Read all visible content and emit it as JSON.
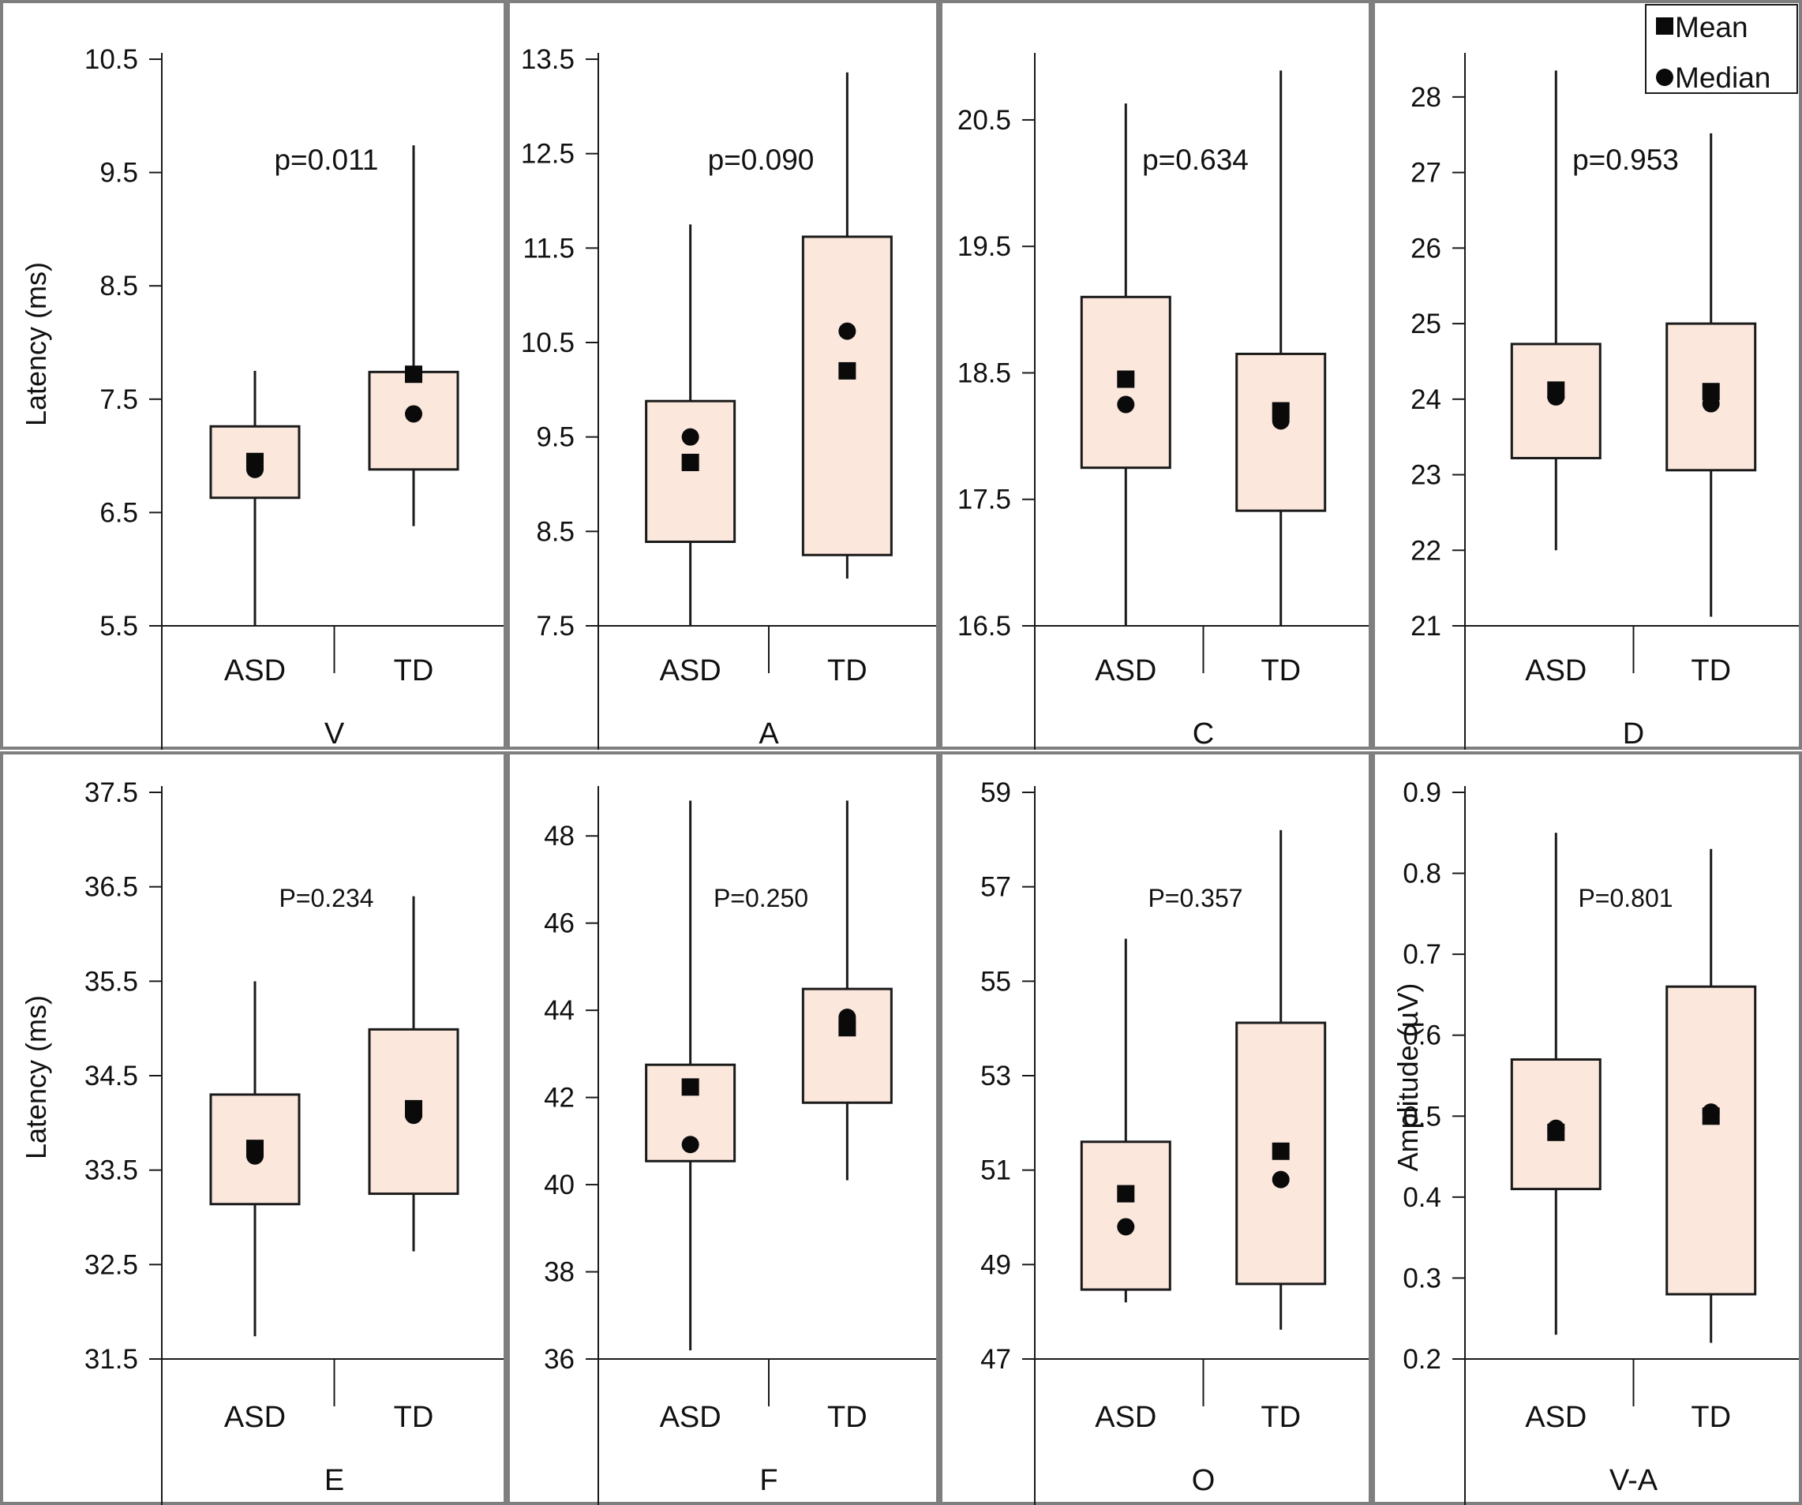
{
  "colors": {
    "box_fill": "#fbe7dc",
    "stroke": "#1a1a1a",
    "panel_border": "#7f7f7f",
    "marker": "#0a0a0a"
  },
  "legend": {
    "items": [
      {
        "label": "Mean",
        "marker": "square"
      },
      {
        "label": "Median",
        "marker": "circle"
      }
    ],
    "placement": "top-right"
  },
  "chart_data": [
    {
      "type": "box",
      "panel": "V",
      "ylabel": "Latency (ms)",
      "ylim": [
        5.5,
        10.5
      ],
      "yticks": [
        "5.5",
        "6.5",
        "7.5",
        "8.5",
        "9.5",
        "10.5"
      ],
      "pvalue": "p=0.011",
      "categories": [
        "ASD",
        "TD"
      ],
      "series": [
        {
          "min": 5.5,
          "q1": 6.63,
          "q3": 7.26,
          "max": 7.75,
          "mean": 6.95,
          "median": 6.88
        },
        {
          "min": 6.38,
          "q1": 6.88,
          "q3": 7.74,
          "max": 9.74,
          "mean": 7.72,
          "median": 7.37
        }
      ]
    },
    {
      "type": "box",
      "panel": "A",
      "ylabel": "",
      "ylim": [
        7.5,
        13.5
      ],
      "yticks": [
        "7.5",
        "8.5",
        "9.5",
        "10.5",
        "11.5",
        "12.5",
        "13.5"
      ],
      "pvalue": "p=0.090",
      "categories": [
        "ASD",
        "TD"
      ],
      "series": [
        {
          "min": 7.5,
          "q1": 8.39,
          "q3": 9.88,
          "max": 11.75,
          "mean": 9.23,
          "median": 9.5
        },
        {
          "min": 8.0,
          "q1": 8.25,
          "q3": 11.62,
          "max": 13.36,
          "mean": 10.2,
          "median": 10.62
        }
      ]
    },
    {
      "type": "box",
      "panel": "C",
      "ylabel": "",
      "ylim": [
        16.5,
        20.98
      ],
      "yticks": [
        "16.5",
        "17.5",
        "18.5",
        "19.5",
        "20.5"
      ],
      "pvalue": "p=0.634",
      "categories": [
        "ASD",
        "TD"
      ],
      "series": [
        {
          "min": 16.5,
          "q1": 17.75,
          "q3": 19.1,
          "max": 20.63,
          "mean": 18.45,
          "median": 18.25
        },
        {
          "min": 16.5,
          "q1": 17.41,
          "q3": 18.65,
          "max": 20.89,
          "mean": 18.2,
          "median": 18.12
        }
      ]
    },
    {
      "type": "box",
      "panel": "D",
      "ylabel": "",
      "ylim": [
        21,
        28.5
      ],
      "yticks": [
        "21",
        "22",
        "23",
        "24",
        "25",
        "26",
        "27",
        "28"
      ],
      "pvalue": "p=0.953",
      "categories": [
        "ASD",
        "TD"
      ],
      "series": [
        {
          "min": 22.0,
          "q1": 23.22,
          "q3": 24.73,
          "max": 28.35,
          "mean": 24.12,
          "median": 24.03
        },
        {
          "min": 21.12,
          "q1": 23.06,
          "q3": 25.0,
          "max": 27.52,
          "mean": 24.1,
          "median": 23.94
        }
      ]
    },
    {
      "type": "box",
      "panel": "E",
      "ylabel": "Latency (ms)",
      "ylim": [
        31.5,
        37.5
      ],
      "yticks": [
        "31.5",
        "32.5",
        "33.5",
        "34.5",
        "35.5",
        "36.5",
        "37.5"
      ],
      "pvalue": "P=0.234",
      "categories": [
        "ASD",
        "TD"
      ],
      "series": [
        {
          "min": 31.74,
          "q1": 33.14,
          "q3": 34.3,
          "max": 35.5,
          "mean": 33.73,
          "median": 33.65
        },
        {
          "min": 32.64,
          "q1": 33.25,
          "q3": 34.99,
          "max": 36.4,
          "mean": 34.15,
          "median": 34.08
        }
      ]
    },
    {
      "type": "box",
      "panel": "F",
      "ylabel": "",
      "ylim": [
        36,
        49
      ],
      "yticks": [
        "36",
        "38",
        "40",
        "42",
        "44",
        "46",
        "48"
      ],
      "pvalue": "P=0.250",
      "categories": [
        "ASD",
        "TD"
      ],
      "series": [
        {
          "min": 36.2,
          "q1": 40.54,
          "q3": 42.75,
          "max": 48.81,
          "mean": 42.24,
          "median": 40.92
        },
        {
          "min": 40.1,
          "q1": 41.88,
          "q3": 44.49,
          "max": 48.81,
          "mean": 43.6,
          "median": 43.84
        }
      ]
    },
    {
      "type": "box",
      "panel": "O",
      "ylabel": "",
      "ylim": [
        47,
        59
      ],
      "yticks": [
        "47",
        "49",
        "51",
        "53",
        "55",
        "57",
        "59"
      ],
      "pvalue": "P=0.357",
      "categories": [
        "ASD",
        "TD"
      ],
      "series": [
        {
          "min": 48.2,
          "q1": 48.47,
          "q3": 51.6,
          "max": 55.9,
          "mean": 50.5,
          "median": 49.8
        },
        {
          "min": 47.62,
          "q1": 48.59,
          "q3": 54.12,
          "max": 58.2,
          "mean": 51.4,
          "median": 50.8
        }
      ]
    },
    {
      "type": "box",
      "panel": "V-A",
      "ylabel": "Amplitude (µV)",
      "ylim": [
        0.2,
        0.9
      ],
      "yticks": [
        "0.2",
        "0.3",
        "0.4",
        "0.5",
        "0.6",
        "0.7",
        "0.8",
        "0.9"
      ],
      "pvalue": "P=0.801",
      "categories": [
        "ASD",
        "TD"
      ],
      "series": [
        {
          "min": 0.23,
          "q1": 0.41,
          "q3": 0.57,
          "max": 0.85,
          "mean": 0.48,
          "median": 0.485
        },
        {
          "min": 0.22,
          "q1": 0.28,
          "q3": 0.66,
          "max": 0.83,
          "mean": 0.5,
          "median": 0.505
        }
      ]
    }
  ]
}
